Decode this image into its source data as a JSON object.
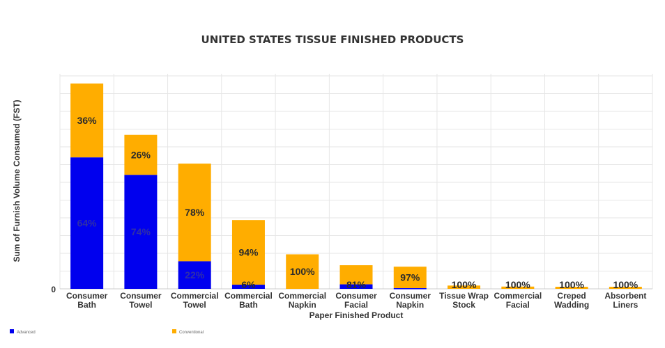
{
  "chart_data": {
    "type": "bar",
    "stacked": true,
    "title": "UNITED STATES TISSUE FINISHED PRODUCTS",
    "xlabel": "Paper Finished Product",
    "ylabel": "Sum of Furnish Volume Consumed (FST)",
    "y_tick_labels": [
      "0"
    ],
    "grid": true,
    "legend_position": "bottom-left",
    "categories": [
      [
        "Consumer",
        "Bath"
      ],
      [
        "Consumer",
        "Towel"
      ],
      [
        "Commercial",
        "Towel"
      ],
      [
        "Commercial",
        "Bath"
      ],
      [
        "Commercial",
        "Napkin"
      ],
      [
        "Consumer",
        "Facial"
      ],
      [
        "Consumer",
        "Napkin"
      ],
      [
        "Tissue Wrap",
        "Stock"
      ],
      [
        "Commercial",
        "Facial"
      ],
      [
        "Creped",
        "Wadding"
      ],
      [
        "Absorbent",
        "Liners"
      ]
    ],
    "totals": [
      100,
      75,
      61,
      33.5,
      16.8,
      11.5,
      10.8,
      1.6,
      1.1,
      0.8,
      0.4
    ],
    "series": [
      {
        "name": "Advanced",
        "color": "#0000ee",
        "percent_labels": [
          "64%",
          "74%",
          "22%",
          "6%",
          "",
          "",
          "",
          "",
          "",
          "",
          ""
        ]
      },
      {
        "name": "Conventional",
        "color": "#ffad00",
        "percent_labels": [
          "36%",
          "26%",
          "78%",
          "94%",
          "100%",
          "81%",
          "97%",
          "100%",
          "100%",
          "100%",
          "100%"
        ]
      }
    ],
    "advanced_share": [
      0.64,
      0.74,
      0.22,
      0.06,
      0,
      0.19,
      0.03,
      0,
      0,
      0,
      0
    ]
  }
}
